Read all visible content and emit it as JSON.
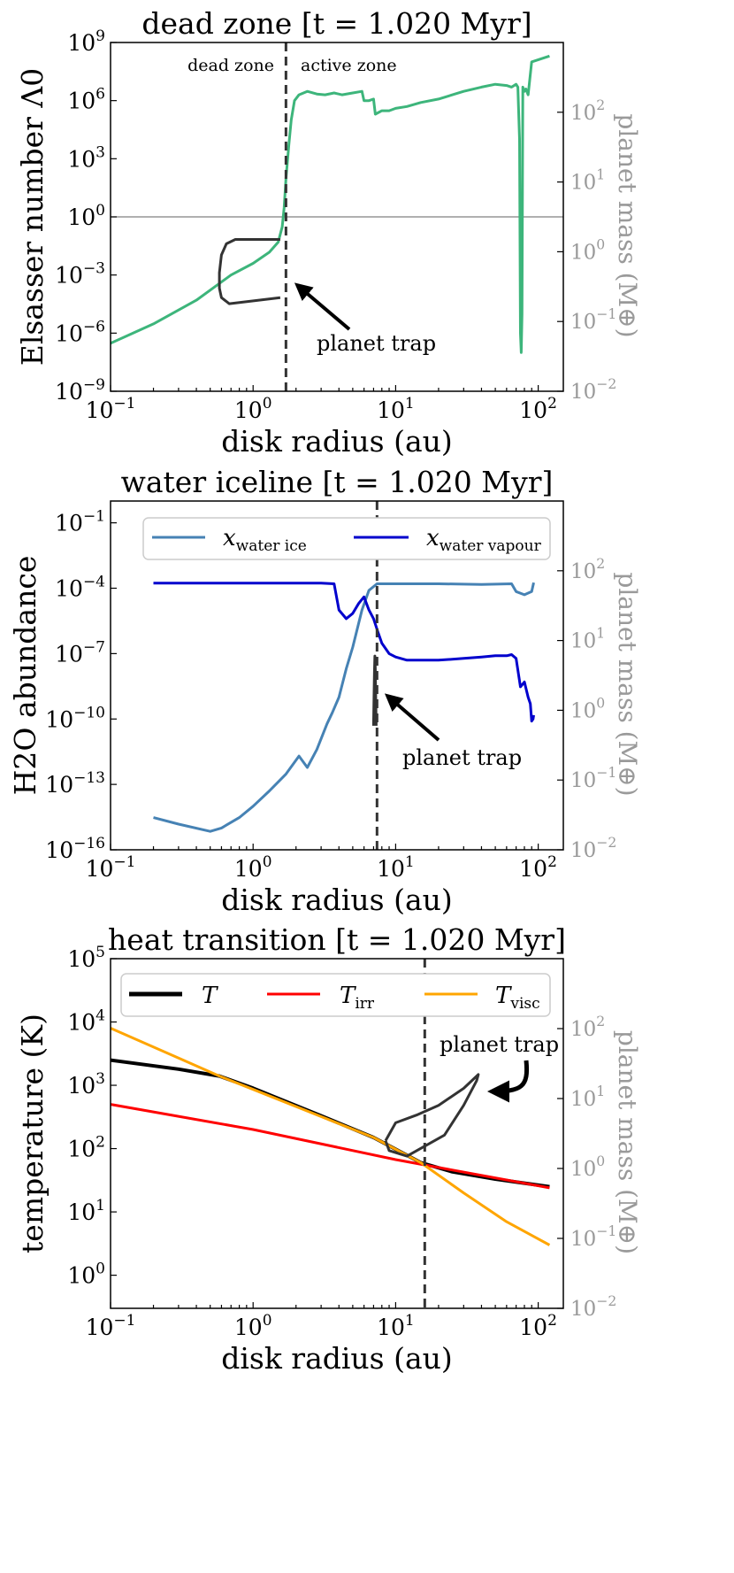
{
  "chart_data": [
    {
      "type": "line",
      "title": "dead zone [t = 1.020 Myr]",
      "xlabel": "disk radius (au)",
      "ylabel": "Elsasser number Λ0",
      "ylabel_right": "planet mass (M⊕)",
      "xlim": [
        0.1,
        150
      ],
      "ylim": [
        1e-09,
        1000000000.0
      ],
      "ylim_right": [
        0.01,
        1000
      ],
      "xscale": "log",
      "yscale": "log",
      "x_ticks": [
        "10−1",
        "100",
        "101",
        "102"
      ],
      "y_ticks": [
        "10−9",
        "10−6",
        "10−3",
        "100",
        "103",
        "106",
        "109"
      ],
      "y_ticks_right": [
        "10−2",
        "10−1",
        "100",
        "101",
        "102"
      ],
      "hline": 1,
      "vline": 1.7,
      "region_labels": [
        "dead zone",
        "active zone"
      ],
      "annotation": "planet trap",
      "series": [
        {
          "name": "Elsasser number",
          "color": "#3db57b",
          "x": [
            0.1,
            0.2,
            0.4,
            0.7,
            1.0,
            1.3,
            1.5,
            1.6,
            1.65,
            1.7,
            1.78,
            1.85,
            1.95,
            2.1,
            2.4,
            2.8,
            3.2,
            3.7,
            4.2,
            5.0,
            5.8,
            6.0,
            6.5,
            7.0,
            7.2,
            8.0,
            9.0,
            10,
            12,
            15,
            20,
            25,
            30,
            40,
            50,
            60,
            65,
            70,
            72,
            74,
            75,
            76,
            77,
            78,
            80,
            82,
            85,
            90,
            120
          ],
          "y": [
            3e-07,
            3e-06,
            5e-05,
            0.001,
            0.004,
            0.015,
            0.05,
            0.3,
            3,
            100,
            5000.0,
            100000.0,
            1000000.0,
            2000000.0,
            3000000.0,
            2200000.0,
            2000000.0,
            2500000.0,
            2000000.0,
            2500000.0,
            3000000.0,
            1000000.0,
            1000000.0,
            1200000.0,
            200000.0,
            300000.0,
            300000.0,
            400000.0,
            500000.0,
            800000.0,
            1200000.0,
            2000000.0,
            3000000.0,
            5000000.0,
            7000000.0,
            6000000.0,
            5000000.0,
            7000000.0,
            5000000.0,
            10000.0,
            1e-06,
            1e-07,
            1e-05,
            5000000.0,
            3000000.0,
            4000000.0,
            2000000.0,
            100000000.0,
            200000000.0
          ]
        }
      ],
      "trap_track": {
        "color": "#333333",
        "x": [
          1.55,
          0.75,
          0.65,
          0.6,
          0.58,
          0.58,
          0.6,
          0.68,
          1.55
        ],
        "mass": [
          1.5,
          1.5,
          1.3,
          0.9,
          0.5,
          0.3,
          0.22,
          0.18,
          0.22
        ]
      }
    },
    {
      "type": "line",
      "title": "water iceline [t = 1.020 Myr]",
      "xlabel": "disk radius (au)",
      "ylabel": "H2O abundance",
      "ylabel_right": "planet mass (M⊕)",
      "xlim": [
        0.1,
        150
      ],
      "ylim": [
        1e-16,
        1
      ],
      "ylim_right": [
        0.01,
        1000
      ],
      "xscale": "log",
      "yscale": "log",
      "x_ticks": [
        "10−1",
        "100",
        "101",
        "102"
      ],
      "y_ticks": [
        "10−16",
        "10−13",
        "10−10",
        "10−7",
        "10−4",
        "10−1"
      ],
      "y_ticks_right": [
        "10−2",
        "10−1",
        "100",
        "101",
        "102"
      ],
      "vline": 7.4,
      "annotation": "planet trap",
      "legend": [
        "xwater ice",
        "xwater vapour"
      ],
      "series": [
        {
          "name": "xwater ice",
          "color": "#4682b4",
          "x": [
            0.2,
            0.3,
            0.5,
            0.6,
            0.8,
            1.0,
            1.3,
            1.7,
            2.1,
            2.4,
            2.8,
            3.3,
            3.6,
            4.0,
            4.5,
            5.0,
            5.8,
            6.5,
            7.4,
            10,
            20,
            40,
            65,
            70,
            80,
            90,
            93
          ],
          "y": [
            3e-15,
            1.5e-15,
            7e-16,
            1e-15,
            3e-15,
            1e-14,
            5e-14,
            3e-13,
            2e-12,
            6e-13,
            4e-12,
            6e-11,
            2e-10,
            1e-09,
            2e-08,
            2e-07,
            1e-05,
            8e-05,
            0.00016,
            0.00016,
            0.00016,
            0.00015,
            0.00016,
            7e-05,
            5e-05,
            7e-05,
            0.00018
          ]
        },
        {
          "name": "xwater vapour",
          "color": "#0000cd",
          "x": [
            0.2,
            0.5,
            1.0,
            2.0,
            3.0,
            3.7,
            4.0,
            4.5,
            5.0,
            5.5,
            6.0,
            6.5,
            7.0,
            7.5,
            8.0,
            9.0,
            10,
            12,
            15,
            20,
            30,
            40,
            50,
            60,
            65,
            70,
            75,
            80,
            85,
            88,
            90,
            92,
            93
          ],
          "y": [
            0.00017,
            0.00017,
            0.00017,
            0.00017,
            0.00017,
            0.00016,
            1e-05,
            4e-06,
            7e-06,
            2e-05,
            4e-05,
            1e-05,
            4e-06,
            1e-06,
            3e-07,
            1e-07,
            7e-08,
            5e-08,
            5e-08,
            5e-08,
            6e-08,
            7e-08,
            8e-08,
            8e-08,
            9e-08,
            6e-08,
            3e-09,
            5e-09,
            1e-09,
            5e-10,
            8e-11,
            1e-10,
            1.5e-10
          ]
        }
      ],
      "trap_track": {
        "color": "#333333",
        "x": [
          7.0,
          7.05,
          7.1,
          7.15,
          7.2,
          7.25,
          7.3
        ],
        "mass": [
          0.6,
          1.5,
          3.5,
          6.0,
          4.0,
          1.5,
          0.6
        ]
      }
    },
    {
      "type": "line",
      "title": "heat transition [t = 1.020 Myr]",
      "xlabel": "disk radius (au)",
      "ylabel": "temperature (K)",
      "ylabel_right": "planet mass (M⊕)",
      "xlim": [
        0.1,
        150
      ],
      "ylim": [
        0.3,
        100000
      ],
      "ylim_right": [
        0.01,
        1000
      ],
      "xscale": "log",
      "yscale": "log",
      "x_ticks": [
        "10−1",
        "100",
        "101",
        "102"
      ],
      "y_ticks": [
        "100",
        "101",
        "102",
        "103",
        "104",
        "105"
      ],
      "y_ticks_right": [
        "10−2",
        "10−1",
        "100",
        "101",
        "102"
      ],
      "vline": 16,
      "annotation": "planet trap",
      "legend": [
        "T",
        "Tirr",
        "Tvisc"
      ],
      "series": [
        {
          "name": "T",
          "color": "#000000",
          "x": [
            0.1,
            0.3,
            0.58,
            1,
            3,
            7,
            15,
            25,
            50,
            120
          ],
          "y": [
            2500,
            1800,
            1400,
            900,
            330,
            150,
            60,
            43,
            33,
            25
          ]
        },
        {
          "name": "Tirr",
          "color": "#ff0000",
          "x": [
            0.1,
            1,
            10,
            120
          ],
          "y": [
            500,
            200,
            67,
            24
          ]
        },
        {
          "name": "Tvisc",
          "color": "#ffa500",
          "x": [
            0.1,
            0.3,
            0.58,
            1,
            3,
            7,
            15,
            30,
            60,
            120
          ],
          "y": [
            8000,
            2700,
            1400,
            860,
            320,
            150,
            60,
            20,
            7,
            3
          ]
        }
      ],
      "trap_track": {
        "color": "#333333",
        "x": [
          8.5,
          10,
          14,
          20,
          30,
          38,
          37,
          30,
          22,
          12,
          9,
          8.5
        ],
        "mass": [
          2.5,
          4.5,
          5.8,
          8,
          14,
          22,
          18,
          8,
          3,
          1.5,
          1.8,
          2.5
        ]
      }
    }
  ]
}
